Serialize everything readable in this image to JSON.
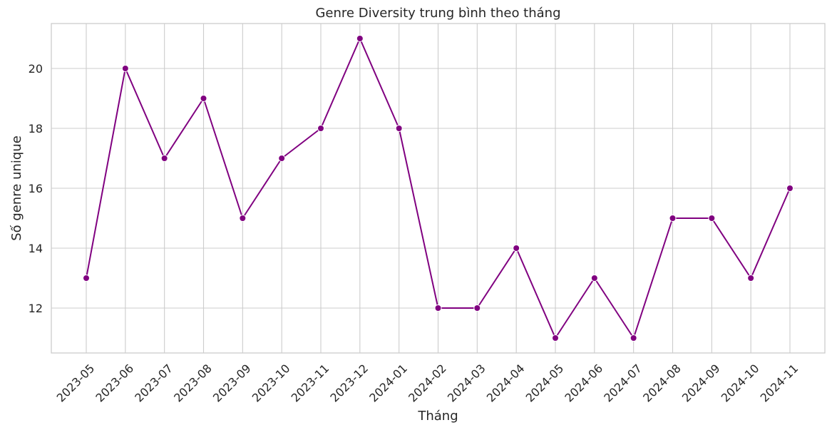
{
  "chart_data": {
    "type": "line",
    "title": "Genre Diversity trung bình theo tháng",
    "xlabel": "Tháng",
    "ylabel": "Số genre unique",
    "x": [
      "2023-05",
      "2023-06",
      "2023-07",
      "2023-08",
      "2023-09",
      "2023-10",
      "2023-11",
      "2023-12",
      "2024-01",
      "2024-02",
      "2024-03",
      "2024-04",
      "2024-05",
      "2024-06",
      "2024-07",
      "2024-08",
      "2024-09",
      "2024-10",
      "2024-11"
    ],
    "series": [
      {
        "values": [
          13,
          20,
          17,
          19,
          15,
          17,
          18,
          21,
          18,
          12,
          12,
          14,
          11,
          13,
          11,
          15,
          15,
          13,
          16
        ],
        "color": "#800080"
      }
    ],
    "yticks": [
      12,
      14,
      16,
      18,
      20
    ],
    "ylim": [
      10.5,
      21.5
    ],
    "grid": true,
    "legend": "none"
  }
}
